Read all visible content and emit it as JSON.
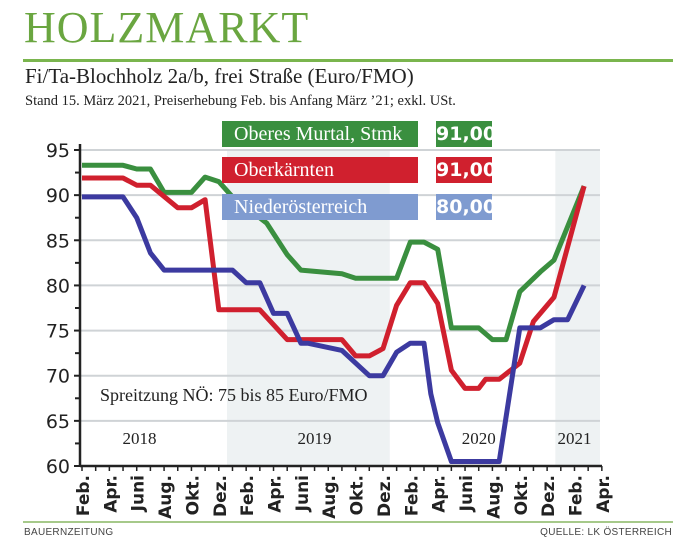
{
  "header": {
    "title": "HOLZMARKT"
  },
  "chart_data": {
    "type": "line",
    "title": "Fi/Ta-Blochholz 2a/b, frei Straße (Euro/FMO)",
    "subtitle": "Stand 15. März 2021, Preiserhebung Feb. bis Anfang März ’21; exkl. USt.",
    "ylim": [
      60,
      95
    ],
    "y_ticks": [
      "60",
      "65",
      "70",
      "75",
      "80",
      "85",
      "90",
      "95"
    ],
    "x_range": [
      "2018-02",
      "2021-04"
    ],
    "x_tick_labels": [
      "Feb.",
      "Apr.",
      "Juni",
      "Aug.",
      "Okt.",
      "Dez.",
      "Feb.",
      "Apr.",
      "Juni",
      "Aug.",
      "Okt.",
      "Dez.",
      "Feb.",
      "Apr.",
      "Juni",
      "Aug.",
      "Okt.",
      "Dez.",
      "Feb.",
      "Apr."
    ],
    "year_labels": [
      {
        "year": "2018"
      },
      {
        "year": "2019"
      },
      {
        "year": "2020"
      },
      {
        "year": "2021"
      }
    ],
    "shaded_years": [
      "2019",
      "2021"
    ],
    "grid": true,
    "annotation": "Spreitzung NÖ: 75 bis 85 Euro/FMO",
    "series": [
      {
        "name": "Oberes Murtal, Stmk",
        "current": "91,00",
        "color": "#3a8f3f",
        "points": [
          [
            "2018-02-01",
            93.3
          ],
          [
            "2018-05-01",
            93.3
          ],
          [
            "2018-06-01",
            92.9
          ],
          [
            "2018-07-01",
            92.9
          ],
          [
            "2018-08-01",
            90.3
          ],
          [
            "2018-10-01",
            90.3
          ],
          [
            "2018-11-01",
            92.0
          ],
          [
            "2018-12-01",
            91.5
          ],
          [
            "2019-01-01",
            89.8
          ],
          [
            "2019-03-16",
            86.9
          ],
          [
            "2019-05-01",
            83.4
          ],
          [
            "2019-06-01",
            81.7
          ],
          [
            "2019-09-01",
            81.3
          ],
          [
            "2019-10-01",
            80.8
          ],
          [
            "2020-01-01",
            80.8
          ],
          [
            "2020-02-01",
            84.8
          ],
          [
            "2020-03-01",
            84.8
          ],
          [
            "2020-04-01",
            84.0
          ],
          [
            "2020-05-01",
            75.3
          ],
          [
            "2020-07-01",
            75.3
          ],
          [
            "2020-08-01",
            74.0
          ],
          [
            "2020-09-01",
            74.0
          ],
          [
            "2020-10-01",
            79.3
          ],
          [
            "2020-11-16",
            81.5
          ],
          [
            "2020-12-16",
            82.8
          ],
          [
            "2021-02-22",
            91.0
          ]
        ]
      },
      {
        "name": "Oberkärnten",
        "current": "91,00",
        "color": "#d0202e",
        "points": [
          [
            "2018-02-01",
            91.9
          ],
          [
            "2018-05-01",
            91.9
          ],
          [
            "2018-06-01",
            91.1
          ],
          [
            "2018-07-01",
            91.1
          ],
          [
            "2018-09-01",
            88.6
          ],
          [
            "2018-10-01",
            88.6
          ],
          [
            "2018-11-01",
            89.5
          ],
          [
            "2018-12-01",
            77.3
          ],
          [
            "2019-03-01",
            77.3
          ],
          [
            "2019-05-01",
            74.0
          ],
          [
            "2019-09-01",
            74.0
          ],
          [
            "2019-10-01",
            72.2
          ],
          [
            "2019-11-01",
            72.2
          ],
          [
            "2019-12-01",
            73.0
          ],
          [
            "2020-01-01",
            77.8
          ],
          [
            "2020-02-01",
            80.3
          ],
          [
            "2020-03-01",
            80.3
          ],
          [
            "2020-04-01",
            78.0
          ],
          [
            "2020-05-01",
            70.6
          ],
          [
            "2020-06-01",
            68.6
          ],
          [
            "2020-07-01",
            68.6
          ],
          [
            "2020-07-16",
            69.6
          ],
          [
            "2020-08-16",
            69.6
          ],
          [
            "2020-10-01",
            71.4
          ],
          [
            "2020-11-01",
            76.0
          ],
          [
            "2020-12-16",
            78.7
          ],
          [
            "2021-02-22",
            91.0
          ]
        ]
      },
      {
        "name": "Niederösterreich",
        "current": "80,00",
        "color": "#3c3aa0",
        "legend_color": "#7f9bd0",
        "points": [
          [
            "2018-02-01",
            89.8
          ],
          [
            "2018-05-01",
            89.8
          ],
          [
            "2018-06-01",
            87.5
          ],
          [
            "2018-07-01",
            83.6
          ],
          [
            "2018-08-01",
            81.7
          ],
          [
            "2019-01-01",
            81.7
          ],
          [
            "2019-02-01",
            80.3
          ],
          [
            "2019-03-01",
            80.3
          ],
          [
            "2019-04-01",
            76.9
          ],
          [
            "2019-05-01",
            76.9
          ],
          [
            "2019-06-01",
            73.6
          ],
          [
            "2019-06-16",
            73.6
          ],
          [
            "2019-09-01",
            72.8
          ],
          [
            "2019-11-01",
            70.0
          ],
          [
            "2019-12-01",
            70.0
          ],
          [
            "2020-01-01",
            72.6
          ],
          [
            "2020-02-01",
            73.6
          ],
          [
            "2020-03-01",
            73.6
          ],
          [
            "2020-03-16",
            68.0
          ],
          [
            "2020-04-01",
            64.8
          ],
          [
            "2020-05-01",
            60.5
          ],
          [
            "2020-08-16",
            60.5
          ],
          [
            "2020-10-01",
            75.3
          ],
          [
            "2020-11-16",
            75.3
          ],
          [
            "2020-12-16",
            76.2
          ],
          [
            "2021-01-16",
            76.2
          ],
          [
            "2021-02-22",
            80.0
          ]
        ]
      }
    ]
  },
  "footer": {
    "left": "BAUERNZEITUNG",
    "right": "QUELLE: LK ÖSTERREICH"
  }
}
